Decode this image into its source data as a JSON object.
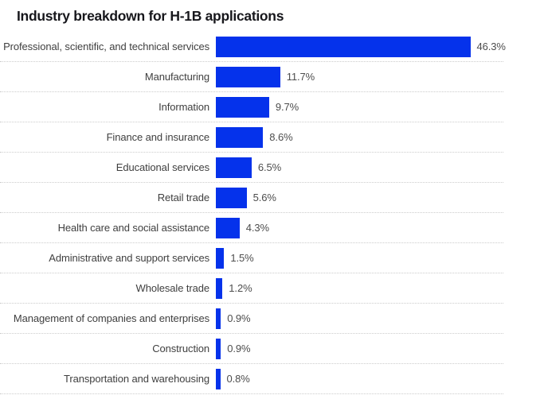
{
  "title": "Industry breakdown for H-1B applications",
  "colors": {
    "bar": "#0532eb",
    "title_text": "#17171c",
    "category_text": "#3f3f3f",
    "value_text": "#4d4d4d",
    "separator": "#cccccc"
  },
  "chart_data": {
    "type": "bar",
    "orientation": "horizontal",
    "title": "Industry breakdown for H-1B applications",
    "categories": [
      "Professional, scientific, and technical services",
      "Manufacturing",
      "Information",
      "Finance and insurance",
      "Educational services",
      "Retail trade",
      "Health care and social assistance",
      "Administrative and support services",
      "Wholesale trade",
      "Management of companies and enterprises",
      "Construction",
      "Transportation and warehousing"
    ],
    "values": [
      46.3,
      11.7,
      9.7,
      8.6,
      6.5,
      5.6,
      4.3,
      1.5,
      1.2,
      0.9,
      0.9,
      0.8
    ],
    "value_labels": [
      "46.3%",
      "11.7%",
      "9.7%",
      "8.6%",
      "6.5%",
      "5.6%",
      "4.3%",
      "1.5%",
      "1.2%",
      "0.9%",
      "0.9%",
      "0.8%"
    ],
    "unit": "%",
    "grid": false,
    "legend": false,
    "value_labels_shown": true,
    "separators": "dotted"
  }
}
